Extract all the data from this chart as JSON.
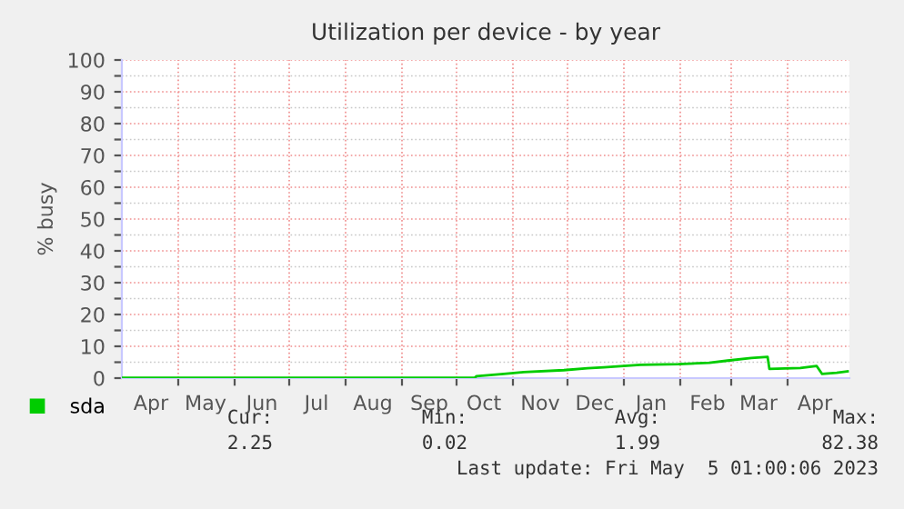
{
  "chart_data": {
    "type": "line",
    "title": "Utilization per device - by year",
    "ylabel": "% busy",
    "x": [
      "2022-03-31",
      "2022-09-20",
      "2022-10-11",
      "2022-10-12",
      "2022-10-27",
      "2022-11-07",
      "2022-11-29",
      "2022-12-12",
      "2022-12-21",
      "2023-01-10",
      "2023-01-31",
      "2023-02-17",
      "2023-02-27",
      "2023-03-12",
      "2023-03-21",
      "2023-03-22",
      "2023-04-08",
      "2023-04-17",
      "2023-04-20",
      "2023-04-28",
      "2023-05-04"
    ],
    "series": [
      {
        "name": "sda",
        "color": "#00cc00",
        "values": [
          0.1,
          0.1,
          0.1,
          0.6,
          1.3,
          1.9,
          2.5,
          3.1,
          3.4,
          4.2,
          4.4,
          4.8,
          5.5,
          6.3,
          6.7,
          2.9,
          3.2,
          3.8,
          1.3,
          1.7,
          2.1
        ]
      }
    ],
    "xlim": [
      "2022-03-31",
      "2023-05-05"
    ],
    "xticks": [
      {
        "value": "2022-05-01",
        "label": null
      },
      {
        "value": "2022-06-01",
        "label": null
      },
      {
        "value": "2022-07-01",
        "label": null
      },
      {
        "value": "2022-08-01",
        "label": null
      },
      {
        "value": "2022-09-01",
        "label": null
      },
      {
        "value": "2022-10-01",
        "label": null
      },
      {
        "value": "2022-11-01",
        "label": null
      },
      {
        "value": "2022-12-01",
        "label": null
      },
      {
        "value": "2023-01-01",
        "label": null
      },
      {
        "value": "2023-02-01",
        "label": null
      },
      {
        "value": "2023-03-01",
        "label": null
      },
      {
        "value": "2023-04-01",
        "label": null
      },
      {
        "value": "2022-04-16",
        "label": "Apr"
      },
      {
        "value": "2022-05-16",
        "label": "May"
      },
      {
        "value": "2022-06-16",
        "label": "Jun"
      },
      {
        "value": "2022-07-16",
        "label": "Jul"
      },
      {
        "value": "2022-08-16",
        "label": "Aug"
      },
      {
        "value": "2022-09-16",
        "label": "Sep"
      },
      {
        "value": "2022-10-16",
        "label": "Oct"
      },
      {
        "value": "2022-11-16",
        "label": "Nov"
      },
      {
        "value": "2022-12-16",
        "label": "Dec"
      },
      {
        "value": "2023-01-16",
        "label": "Jan"
      },
      {
        "value": "2023-02-16",
        "label": "Feb"
      },
      {
        "value": "2023-03-16",
        "label": "Mar"
      },
      {
        "value": "2023-04-16",
        "label": "Apr"
      }
    ],
    "ylim": [
      0,
      100
    ],
    "yticks": [
      0,
      10,
      20,
      30,
      40,
      50,
      60,
      70,
      80,
      90,
      100,
      {
        "value": 5,
        "label": null
      },
      {
        "value": 15,
        "label": null
      },
      {
        "value": 25,
        "label": null
      },
      {
        "value": 35,
        "label": null
      },
      {
        "value": 45,
        "label": null
      },
      {
        "value": 55,
        "label": null
      },
      {
        "value": 65,
        "label": null
      },
      {
        "value": 75,
        "label": null
      },
      {
        "value": 85,
        "label": null
      },
      {
        "value": 95,
        "label": null
      }
    ],
    "grid": true,
    "legend": "bottom",
    "marker": "none",
    "line_style": "solid",
    "annotations": [
      "Cur:",
      "Min:",
      "Avg:",
      "Max:",
      "2.25",
      "0.02",
      "1.99",
      "82.38",
      "Last update: Fri May  5 01:00:06 2023"
    ]
  }
}
